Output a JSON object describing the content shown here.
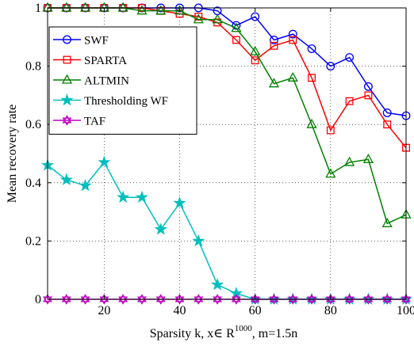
{
  "chart_data": {
    "type": "line",
    "xlabel": "Sparsity k, x∈ R",
    "xlabel_superscript": "1000",
    "xlabel_suffix": ", m=1.5n",
    "ylabel": "Mean recovery rate",
    "xlim": [
      5,
      100
    ],
    "ylim": [
      0,
      1
    ],
    "xticks": [
      20,
      40,
      60,
      80,
      100
    ],
    "yticks": [
      0,
      0.2,
      0.4,
      0.6,
      0.8,
      1
    ],
    "ytick_labels": [
      "0",
      "0.2",
      "0.4",
      "0.6",
      "0.8",
      "1"
    ],
    "grid": "dotted",
    "legend_position": "top-left",
    "x": [
      5,
      10,
      15,
      20,
      25,
      30,
      35,
      40,
      45,
      50,
      55,
      60,
      65,
      70,
      75,
      80,
      85,
      90,
      95,
      100
    ],
    "series": [
      {
        "name": "SWF",
        "color": "#0000ff",
        "marker": "circle",
        "values": [
          1,
          1,
          1,
          1,
          1,
          1,
          1,
          1,
          1,
          0.99,
          0.94,
          0.97,
          0.89,
          0.91,
          0.86,
          0.8,
          0.83,
          0.73,
          0.64,
          0.63
        ]
      },
      {
        "name": "SPARTA",
        "color": "#ff0000",
        "marker": "square",
        "values": [
          1,
          1,
          1,
          1,
          1,
          1,
          0.99,
          0.98,
          0.97,
          0.95,
          0.89,
          0.82,
          0.87,
          0.89,
          0.76,
          0.58,
          0.68,
          0.7,
          0.6,
          0.52
        ]
      },
      {
        "name": "ALTMIN",
        "color": "#008000",
        "marker": "triangle",
        "values": [
          1,
          1,
          1,
          1,
          1,
          0.99,
          0.99,
          0.99,
          0.96,
          0.96,
          0.93,
          0.85,
          0.74,
          0.76,
          0.6,
          0.43,
          0.47,
          0.48,
          0.26,
          0.29
        ]
      },
      {
        "name": "Thresholding WF",
        "color": "#00bfbf",
        "marker": "star",
        "values": [
          0.46,
          0.41,
          0.39,
          0.47,
          0.35,
          0.35,
          0.24,
          0.33,
          0.2,
          0.05,
          0.02,
          0,
          0,
          0,
          0,
          0,
          0,
          0,
          0,
          0
        ]
      },
      {
        "name": "TAF",
        "color": "#bf00bf",
        "marker": "hexagram",
        "values": [
          0,
          0,
          0,
          0,
          0,
          0,
          0,
          0,
          0,
          0,
          0,
          0,
          0,
          0,
          0,
          0,
          0,
          0,
          0,
          0
        ]
      }
    ]
  }
}
